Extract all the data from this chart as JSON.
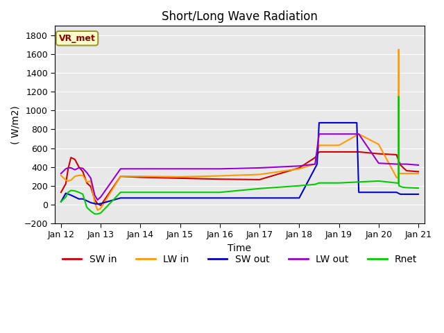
{
  "title": "Short/Long Wave Radiation",
  "xlabel": "Time",
  "ylabel": "( W/m2)",
  "ylim": [
    -200,
    1900
  ],
  "yticks": [
    -200,
    0,
    200,
    400,
    600,
    800,
    1000,
    1200,
    1400,
    1600,
    1800
  ],
  "bg_color": "#e8e8e8",
  "legend_label": "VR_met",
  "series": {
    "SW_in": {
      "color": "#cc0000",
      "x": [
        0.0,
        0.12,
        0.18,
        0.25,
        0.35,
        0.45,
        0.55,
        0.65,
        0.75,
        0.85,
        0.92,
        1.0,
        1.5,
        2.0,
        3.0,
        4.0,
        5.0,
        6.0,
        6.4,
        6.5,
        7.0,
        7.5,
        8.0,
        8.45,
        8.5,
        8.52,
        8.55,
        8.6,
        8.7,
        9.0
      ],
      "y": [
        130,
        220,
        380,
        500,
        480,
        400,
        350,
        230,
        190,
        50,
        10,
        -10,
        300,
        290,
        280,
        270,
        265,
        390,
        500,
        560,
        560,
        560,
        540,
        530,
        470,
        450,
        420,
        400,
        360,
        350
      ]
    },
    "LW_in": {
      "color": "#ff9900",
      "x": [
        0.0,
        0.12,
        0.18,
        0.25,
        0.35,
        0.45,
        0.55,
        0.65,
        0.75,
        0.85,
        0.92,
        1.0,
        1.5,
        2.0,
        3.0,
        4.0,
        5.0,
        6.0,
        6.4,
        6.5,
        7.0,
        7.5,
        8.0,
        8.45,
        8.5,
        8.505,
        8.51,
        8.6,
        8.7,
        9.0
      ],
      "y": [
        310,
        260,
        250,
        260,
        300,
        310,
        310,
        240,
        250,
        20,
        -60,
        -40,
        300,
        300,
        295,
        305,
        320,
        380,
        430,
        630,
        630,
        750,
        640,
        290,
        280,
        1650,
        330,
        330,
        330,
        330
      ]
    },
    "SW_out": {
      "color": "#0000cc",
      "x": [
        0.0,
        0.12,
        0.25,
        0.35,
        0.45,
        0.55,
        0.65,
        0.75,
        0.85,
        0.92,
        1.0,
        1.5,
        4.0,
        5.0,
        6.0,
        6.45,
        6.5,
        7.45,
        7.5,
        8.0,
        8.45,
        8.5,
        8.52,
        8.55,
        8.6,
        8.7,
        9.0
      ],
      "y": [
        30,
        120,
        100,
        80,
        60,
        60,
        40,
        20,
        10,
        5,
        10,
        70,
        70,
        70,
        70,
        430,
        870,
        870,
        130,
        130,
        130,
        120,
        115,
        110,
        110,
        110,
        110
      ]
    },
    "LW_out": {
      "color": "#9900cc",
      "x": [
        0.0,
        0.12,
        0.18,
        0.25,
        0.35,
        0.45,
        0.55,
        0.65,
        0.75,
        0.85,
        0.92,
        1.0,
        1.5,
        2.0,
        3.0,
        4.0,
        5.0,
        6.0,
        6.4,
        6.5,
        7.0,
        7.5,
        8.0,
        8.45,
        8.5,
        8.55,
        8.6,
        8.7,
        9.0
      ],
      "y": [
        330,
        380,
        390,
        390,
        370,
        390,
        385,
        340,
        280,
        100,
        50,
        80,
        380,
        380,
        380,
        380,
        390,
        410,
        430,
        750,
        750,
        750,
        440,
        430,
        430,
        430,
        430,
        430,
        420
      ]
    },
    "Rnet": {
      "color": "#00cc00",
      "x": [
        0.0,
        0.12,
        0.18,
        0.25,
        0.35,
        0.45,
        0.55,
        0.65,
        0.75,
        0.85,
        0.92,
        1.0,
        1.5,
        2.0,
        3.0,
        4.0,
        5.0,
        6.0,
        6.4,
        6.5,
        7.0,
        7.5,
        8.0,
        8.45,
        8.5,
        8.505,
        8.51,
        8.6,
        8.7,
        9.0
      ],
      "y": [
        30,
        80,
        130,
        150,
        145,
        130,
        110,
        -30,
        -70,
        -100,
        -100,
        -90,
        130,
        130,
        130,
        130,
        170,
        200,
        215,
        230,
        230,
        240,
        250,
        230,
        225,
        1150,
        200,
        185,
        180,
        175
      ]
    }
  },
  "x_ticks": [
    0,
    1,
    2,
    3,
    4,
    5,
    6,
    7,
    8,
    9
  ],
  "x_tick_labels": [
    "Jan 12",
    "Jan 13",
    "Jan 14",
    "Jan 15",
    "Jan 16",
    "Jan 17",
    "Jan 18",
    "Jan 19",
    "Jan 20",
    "Jan 21"
  ],
  "xlim": [
    -0.15,
    9.15
  ]
}
